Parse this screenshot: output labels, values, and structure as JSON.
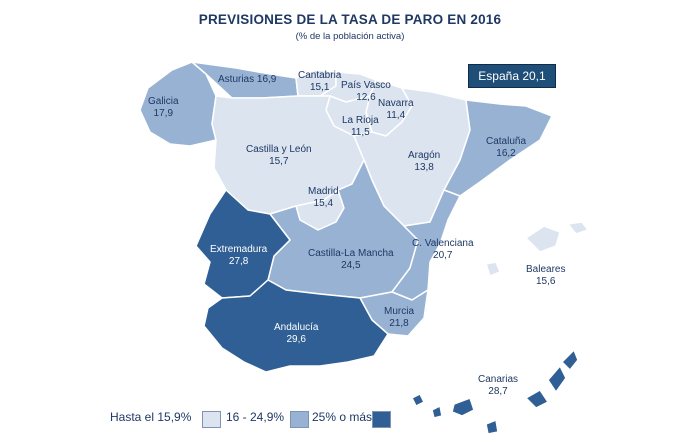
{
  "title": "PREVISIONES DE LA TASA DE PARO EN 2016",
  "subtitle": "(% de la población activa)",
  "national": {
    "label": "España 20,1"
  },
  "colors": {
    "low": "#dbe4ef",
    "mid": "#98b2d4",
    "high": "#2f5f94",
    "text_dark": "#1f3864",
    "border": "#ffffff"
  },
  "legend": {
    "low_label": "Hasta el 15,9%",
    "mid_label": "16 - 24,9%",
    "high_label": "25% o más"
  },
  "regions": [
    {
      "id": "galicia",
      "name": "Galicia",
      "value": "17,9",
      "tier": "mid"
    },
    {
      "id": "asturias",
      "name": "Asturias",
      "value": "16,9",
      "tier": "mid"
    },
    {
      "id": "cantabria",
      "name": "Cantabria",
      "value": "15,1",
      "tier": "low"
    },
    {
      "id": "pais-vasco",
      "name": "País Vasco",
      "value": "12,6",
      "tier": "low"
    },
    {
      "id": "navarra",
      "name": "Navarra",
      "value": "11,4",
      "tier": "low"
    },
    {
      "id": "la-rioja",
      "name": "La Rioja",
      "value": "11,5",
      "tier": "low"
    },
    {
      "id": "castilla-leon",
      "name": "Castilla  y  León",
      "value": "15,7",
      "tier": "low"
    },
    {
      "id": "aragon",
      "name": "Aragón",
      "value": "13,8",
      "tier": "low"
    },
    {
      "id": "cataluna",
      "name": "Cataluña",
      "value": "16,2",
      "tier": "mid"
    },
    {
      "id": "madrid",
      "name": "Madrid",
      "value": "15,4",
      "tier": "low"
    },
    {
      "id": "extremadura",
      "name": "Extremadura",
      "value": "27,8",
      "tier": "high"
    },
    {
      "id": "castilla-la-mancha",
      "name": "Castilla-La Mancha",
      "value": "24,5",
      "tier": "mid"
    },
    {
      "id": "c-valenciana",
      "name": "C. Valenciana",
      "value": "20,7",
      "tier": "mid"
    },
    {
      "id": "baleares",
      "name": "Baleares",
      "value": "15,6",
      "tier": "low"
    },
    {
      "id": "murcia",
      "name": "Murcia",
      "value": "21,8",
      "tier": "mid"
    },
    {
      "id": "andalucia",
      "name": "Andalucía",
      "value": "29,6",
      "tier": "high"
    },
    {
      "id": "canarias",
      "name": "Canarias",
      "value": "28,7",
      "tier": "high"
    }
  ]
}
